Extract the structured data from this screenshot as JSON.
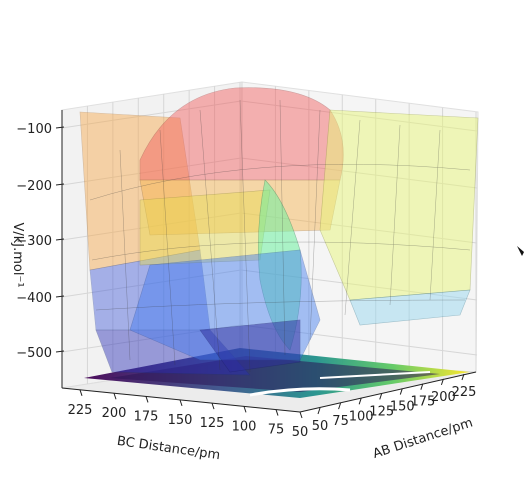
{
  "chart_data": {
    "type": "surface3d",
    "title": "",
    "xlabel": "AB Distance/pm",
    "ylabel": "BC Distance/pm",
    "zlabel": "V/kJ.mol⁻¹",
    "xticks": [
      "50",
      "75",
      "100",
      "125",
      "150",
      "175",
      "200",
      "225"
    ],
    "yticks": [
      "225",
      "200",
      "175",
      "150",
      "125",
      "100",
      "75",
      "50"
    ],
    "zticks": [
      "−100",
      "−200",
      "−300",
      "−400",
      "−500"
    ],
    "xlim": [
      40,
      240
    ],
    "ylim": [
      40,
      240
    ],
    "zlim": [
      -560,
      -60
    ],
    "grid": true,
    "colormap_surface": "jet (semi-transparent)",
    "colormap_contour": "viridis",
    "features": {
      "valley_bottom_kj_mol": -530,
      "barrier_kj_mol": -420,
      "plateau_kj_mol": -110
    }
  }
}
